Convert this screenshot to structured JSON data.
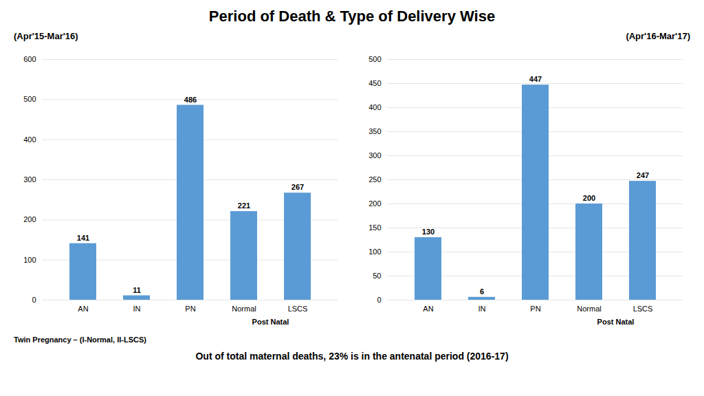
{
  "title": "Period of Death & Type of Delivery Wise",
  "footer": "Out of total maternal deaths, 23% is in the antenatal period (2016-17)",
  "note": "Twin Pregnancy – (I-Normal, II-LSCS)",
  "chart_data": [
    {
      "type": "bar",
      "subtitle": "(Apr'15-Mar'16)",
      "categories": [
        "AN",
        "IN",
        "PN",
        "Normal",
        "LSCS"
      ],
      "values": [
        141,
        11,
        486,
        221,
        267
      ],
      "color": "#5b9bd5",
      "ylim": [
        0,
        600
      ],
      "yticks": [
        0,
        100,
        200,
        300,
        400,
        500,
        600
      ],
      "grid": true,
      "data_labels": true,
      "annotations": [
        "Post Natal"
      ]
    },
    {
      "type": "bar",
      "subtitle": "(Apr'16-Mar'17)",
      "categories": [
        "AN",
        "IN",
        "PN",
        "Normal",
        "LSCS"
      ],
      "values": [
        130,
        6,
        447,
        200,
        247
      ],
      "color": "#5b9bd5",
      "ylim": [
        0,
        500
      ],
      "yticks": [
        0,
        50,
        100,
        150,
        200,
        250,
        300,
        350,
        400,
        450,
        500
      ],
      "grid": true,
      "data_labels": true,
      "annotations": [
        "Post Natal"
      ]
    }
  ]
}
